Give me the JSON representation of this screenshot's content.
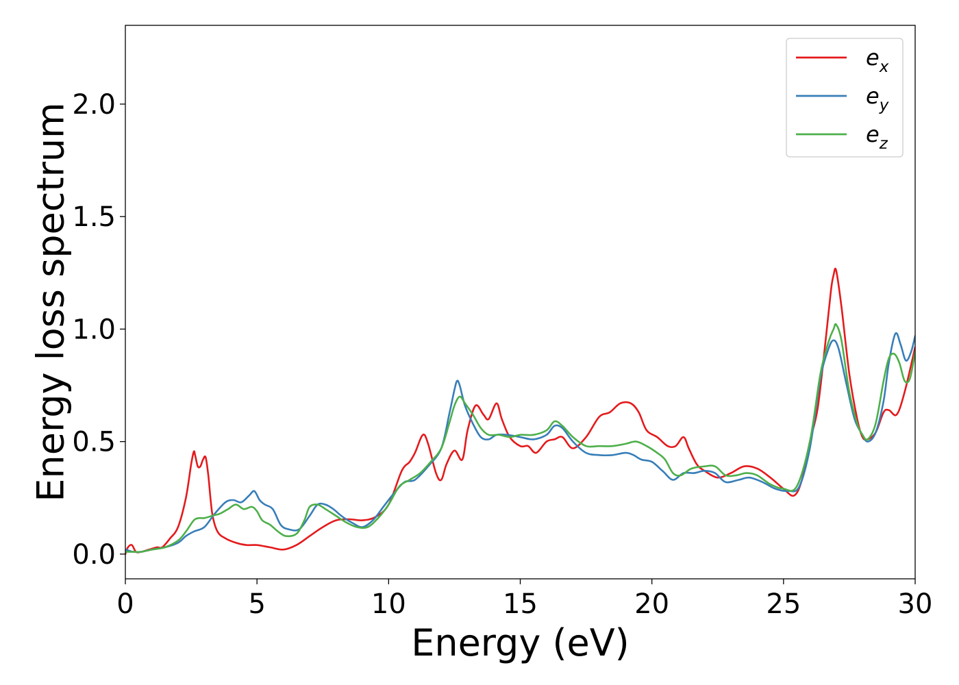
{
  "chart_data": {
    "type": "line",
    "title": "",
    "xlabel": "Energy (eV)",
    "ylabel": "Energy loss spectrum",
    "xlim": [
      0,
      30
    ],
    "ylim": [
      -0.11,
      2.35
    ],
    "xticks": [
      0,
      5,
      10,
      15,
      20,
      25,
      30
    ],
    "xtick_labels": [
      "0",
      "5",
      "10",
      "15",
      "20",
      "25",
      "30"
    ],
    "yticks": [
      0.0,
      0.5,
      1.0,
      1.5,
      2.0
    ],
    "ytick_labels": [
      "0.0",
      "0.5",
      "1.0",
      "1.5",
      "2.0"
    ],
    "grid": false,
    "legend_position": "top-right",
    "series": [
      {
        "name": "e",
        "subscript": "x",
        "color": "#e41a1c",
        "x": [
          0,
          0.1,
          0.25,
          0.4,
          0.6,
          0.9,
          1.2,
          1.4,
          1.7,
          2.0,
          2.3,
          2.5,
          2.6,
          2.65,
          2.75,
          2.85,
          2.95,
          3.05,
          3.15,
          3.3,
          3.5,
          3.8,
          4.2,
          4.6,
          5.0,
          5.5,
          6.0,
          6.5,
          7.0,
          7.5,
          8.0,
          8.5,
          9.0,
          9.5,
          10.0,
          10.5,
          10.8,
          11.0,
          11.3,
          11.5,
          11.8,
          12.0,
          12.2,
          12.5,
          12.8,
          13.0,
          13.3,
          13.6,
          13.8,
          14.1,
          14.3,
          14.6,
          15.0,
          15.3,
          15.6,
          16.0,
          16.3,
          16.6,
          17.0,
          17.5,
          18.0,
          18.4,
          18.8,
          19.2,
          19.5,
          19.8,
          20.2,
          20.6,
          20.9,
          21.2,
          21.4,
          21.7,
          22.0,
          22.5,
          23.0,
          23.5,
          24.0,
          24.5,
          25.0,
          25.4,
          25.7,
          26.0,
          26.3,
          26.6,
          26.8,
          26.9,
          27.0,
          27.2,
          27.5,
          27.8,
          28.0,
          28.2,
          28.5,
          28.8,
          29.0,
          29.3,
          29.6,
          30.0
        ],
        "y": [
          0.0,
          0.03,
          0.04,
          0.01,
          0.01,
          0.02,
          0.03,
          0.03,
          0.07,
          0.12,
          0.25,
          0.4,
          0.455,
          0.44,
          0.39,
          0.39,
          0.42,
          0.43,
          0.35,
          0.18,
          0.1,
          0.07,
          0.05,
          0.04,
          0.04,
          0.03,
          0.02,
          0.04,
          0.08,
          0.12,
          0.15,
          0.155,
          0.15,
          0.165,
          0.22,
          0.37,
          0.41,
          0.45,
          0.53,
          0.49,
          0.36,
          0.33,
          0.4,
          0.46,
          0.42,
          0.55,
          0.66,
          0.62,
          0.6,
          0.67,
          0.6,
          0.52,
          0.48,
          0.48,
          0.45,
          0.5,
          0.51,
          0.52,
          0.47,
          0.52,
          0.61,
          0.63,
          0.67,
          0.67,
          0.63,
          0.55,
          0.52,
          0.48,
          0.48,
          0.52,
          0.47,
          0.4,
          0.37,
          0.34,
          0.36,
          0.39,
          0.38,
          0.34,
          0.29,
          0.26,
          0.33,
          0.5,
          0.65,
          0.95,
          1.17,
          1.24,
          1.26,
          1.1,
          0.8,
          0.6,
          0.52,
          0.51,
          0.54,
          0.63,
          0.64,
          0.62,
          0.72,
          0.92
        ]
      },
      {
        "name": "e",
        "subscript": "y",
        "color": "#377eb8",
        "x": [
          0,
          0.3,
          0.6,
          1.0,
          1.5,
          2.0,
          2.3,
          2.6,
          3.0,
          3.4,
          3.8,
          4.1,
          4.4,
          4.7,
          4.9,
          5.1,
          5.3,
          5.6,
          5.9,
          6.2,
          6.6,
          7.0,
          7.3,
          7.6,
          7.9,
          8.2,
          8.6,
          9.0,
          9.4,
          9.8,
          10.2,
          10.6,
          11.0,
          11.5,
          12.0,
          12.3,
          12.5,
          12.6,
          12.7,
          12.9,
          13.2,
          13.5,
          13.8,
          14.1,
          14.5,
          15.0,
          15.5,
          16.0,
          16.3,
          16.6,
          17.0,
          17.5,
          18.0,
          18.5,
          19.0,
          19.3,
          19.6,
          20.0,
          20.4,
          20.8,
          21.2,
          21.6,
          22.0,
          22.4,
          22.8,
          23.3,
          23.7,
          24.2,
          24.7,
          25.2,
          25.6,
          26.0,
          26.4,
          26.7,
          26.9,
          27.1,
          27.4,
          27.7,
          28.0,
          28.2,
          28.5,
          28.8,
          29.0,
          29.25,
          29.45,
          29.65,
          29.85,
          30.0
        ],
        "y": [
          0.02,
          0.01,
          0.01,
          0.02,
          0.03,
          0.05,
          0.08,
          0.1,
          0.12,
          0.18,
          0.23,
          0.24,
          0.23,
          0.26,
          0.28,
          0.24,
          0.22,
          0.2,
          0.13,
          0.11,
          0.11,
          0.17,
          0.22,
          0.22,
          0.2,
          0.17,
          0.14,
          0.12,
          0.15,
          0.21,
          0.27,
          0.32,
          0.33,
          0.39,
          0.47,
          0.62,
          0.73,
          0.77,
          0.75,
          0.66,
          0.58,
          0.52,
          0.51,
          0.53,
          0.53,
          0.52,
          0.51,
          0.53,
          0.57,
          0.56,
          0.5,
          0.45,
          0.44,
          0.44,
          0.45,
          0.44,
          0.42,
          0.41,
          0.37,
          0.33,
          0.36,
          0.36,
          0.37,
          0.36,
          0.32,
          0.33,
          0.34,
          0.32,
          0.29,
          0.28,
          0.3,
          0.47,
          0.78,
          0.91,
          0.95,
          0.91,
          0.75,
          0.6,
          0.53,
          0.5,
          0.54,
          0.68,
          0.85,
          0.98,
          0.93,
          0.86,
          0.9,
          0.97
        ]
      },
      {
        "name": "e",
        "subscript": "z",
        "color": "#4daf4a",
        "x": [
          0,
          0.3,
          0.6,
          1.0,
          1.5,
          2.0,
          2.3,
          2.6,
          2.8,
          3.0,
          3.3,
          3.6,
          3.9,
          4.2,
          4.5,
          4.8,
          5.0,
          5.2,
          5.5,
          5.8,
          6.1,
          6.5,
          6.8,
          7.0,
          7.3,
          7.6,
          8.0,
          8.4,
          8.8,
          9.2,
          9.6,
          10.0,
          10.4,
          10.8,
          11.2,
          11.6,
          12.0,
          12.3,
          12.5,
          12.7,
          12.9,
          13.2,
          13.5,
          13.8,
          14.2,
          14.6,
          15.0,
          15.5,
          16.0,
          16.3,
          16.6,
          17.0,
          17.5,
          18.0,
          18.5,
          19.0,
          19.4,
          19.8,
          20.2,
          20.5,
          20.8,
          21.1,
          21.5,
          22.0,
          22.4,
          22.8,
          23.2,
          23.6,
          24.0,
          24.5,
          25.0,
          25.5,
          26.0,
          26.4,
          26.7,
          26.9,
          27.0,
          27.2,
          27.5,
          27.8,
          28.0,
          28.2,
          28.5,
          28.8,
          29.0,
          29.2,
          29.4,
          29.6,
          29.8,
          30.0
        ],
        "y": [
          0.01,
          0.01,
          0.01,
          0.02,
          0.03,
          0.06,
          0.1,
          0.15,
          0.16,
          0.16,
          0.17,
          0.18,
          0.2,
          0.22,
          0.2,
          0.21,
          0.19,
          0.15,
          0.13,
          0.1,
          0.08,
          0.09,
          0.15,
          0.21,
          0.22,
          0.2,
          0.17,
          0.14,
          0.12,
          0.12,
          0.16,
          0.22,
          0.3,
          0.33,
          0.36,
          0.41,
          0.47,
          0.58,
          0.66,
          0.7,
          0.67,
          0.62,
          0.56,
          0.53,
          0.53,
          0.52,
          0.53,
          0.53,
          0.55,
          0.59,
          0.57,
          0.52,
          0.48,
          0.48,
          0.48,
          0.49,
          0.5,
          0.48,
          0.45,
          0.42,
          0.36,
          0.35,
          0.38,
          0.39,
          0.39,
          0.35,
          0.35,
          0.36,
          0.35,
          0.31,
          0.29,
          0.3,
          0.5,
          0.8,
          0.94,
          1.0,
          1.02,
          0.95,
          0.72,
          0.58,
          0.53,
          0.51,
          0.58,
          0.77,
          0.87,
          0.89,
          0.85,
          0.77,
          0.78,
          0.9
        ]
      }
    ]
  }
}
